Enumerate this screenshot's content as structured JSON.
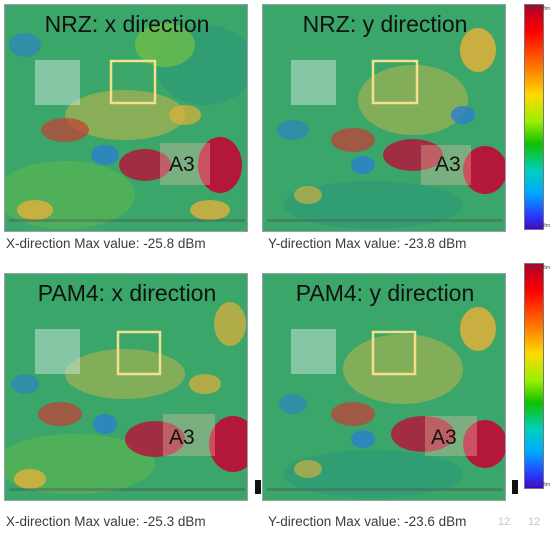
{
  "panels": [
    {
      "title": "NRZ: x direction",
      "label": "A3",
      "caption": "X-direction Max value: -25.8 dBm"
    },
    {
      "title": "NRZ: y direction",
      "label": "A3",
      "caption": "Y-direction Max value: -23.8 dBm"
    },
    {
      "title": "PAM4: x direction",
      "label": "A3",
      "caption": "X-direction Max value: -25.3 dBm"
    },
    {
      "title": "PAM4: y direction",
      "label": "A3",
      "caption": "Y-direction Max value: -23.6 dBm"
    }
  ],
  "colorbar": {
    "max_label": "-30.0 dBm",
    "min_label": "-60.0 dBm"
  },
  "page_numbers": [
    "12",
    "12"
  ],
  "colors": {
    "heatmap_base": "#3aa66a",
    "hot": "#b3173a",
    "warm": "#e3b03b",
    "cool": "#2a7fd0",
    "highlight_box": "#f3e08a"
  }
}
